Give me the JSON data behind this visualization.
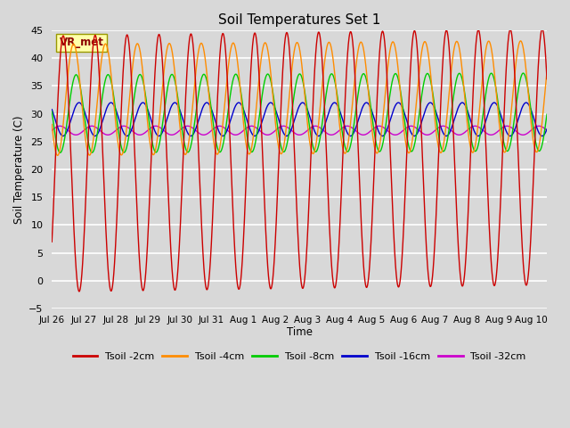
{
  "title": "Soil Temperatures Set 1",
  "xlabel": "Time",
  "ylabel": "Soil Temperature (C)",
  "ylim": [
    -5,
    45
  ],
  "xlim": [
    0,
    15.5
  ],
  "bg_color": "#d8d8d8",
  "colors": {
    "2cm": "#cc0000",
    "4cm": "#ff8c00",
    "8cm": "#00cc00",
    "16cm": "#0000cc",
    "32cm": "#cc00cc"
  },
  "legend_labels": [
    "Tsoil -2cm",
    "Tsoil -4cm",
    "Tsoil -8cm",
    "Tsoil -16cm",
    "Tsoil -32cm"
  ],
  "vr_met_label": "VR_met",
  "tick_labels": [
    "Jul 26",
    "Jul 27",
    "Jul 28",
    "Jul 29",
    "Jul 30",
    "Jul 31",
    "Aug 1",
    "Aug 2",
    "Aug 3",
    "Aug 4",
    "Aug 5",
    "Aug 6",
    "Aug 7",
    "Aug 8",
    "Aug 9",
    "Aug 10"
  ],
  "tick_positions": [
    0,
    1,
    2,
    3,
    4,
    5,
    6,
    7,
    8,
    9,
    10,
    11,
    12,
    13,
    14,
    15
  ],
  "yticks": [
    -5,
    0,
    5,
    10,
    15,
    20,
    25,
    30,
    35,
    40,
    45
  ]
}
